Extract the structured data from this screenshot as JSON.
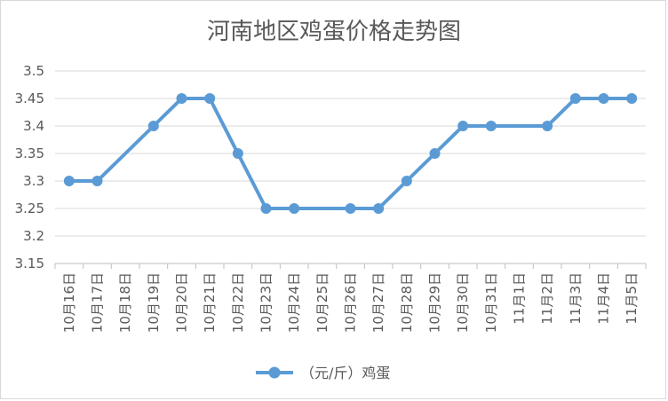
{
  "chart_data": {
    "type": "line",
    "title": "河南地区鸡蛋价格走势图",
    "xlabel": "",
    "ylabel": "",
    "categories": [
      "10月16日",
      "10月17日",
      "10月18日",
      "10月19日",
      "10月20日",
      "10月21日",
      "10月22日",
      "10月23日",
      "10月24日",
      "10月25日",
      "10月26日",
      "10月27日",
      "10月28日",
      "10月29日",
      "10月30日",
      "10月31日",
      "11月1日",
      "11月2日",
      "11月3日",
      "11月4日",
      "11月5日"
    ],
    "series": [
      {
        "name": "（元/斤）鸡蛋",
        "color": "#5b9bd5",
        "values": [
          3.3,
          3.3,
          null,
          3.4,
          3.45,
          3.45,
          3.35,
          3.25,
          3.25,
          null,
          3.25,
          3.25,
          3.3,
          3.35,
          3.4,
          3.4,
          null,
          3.4,
          3.45,
          3.45,
          3.45
        ]
      }
    ],
    "ylim": [
      3.15,
      3.5
    ],
    "yticks": [
      "3.15",
      "3.2",
      "3.25",
      "3.3",
      "3.35",
      "3.4",
      "3.45",
      "3.5"
    ],
    "grid": true,
    "legend": "bottom"
  }
}
